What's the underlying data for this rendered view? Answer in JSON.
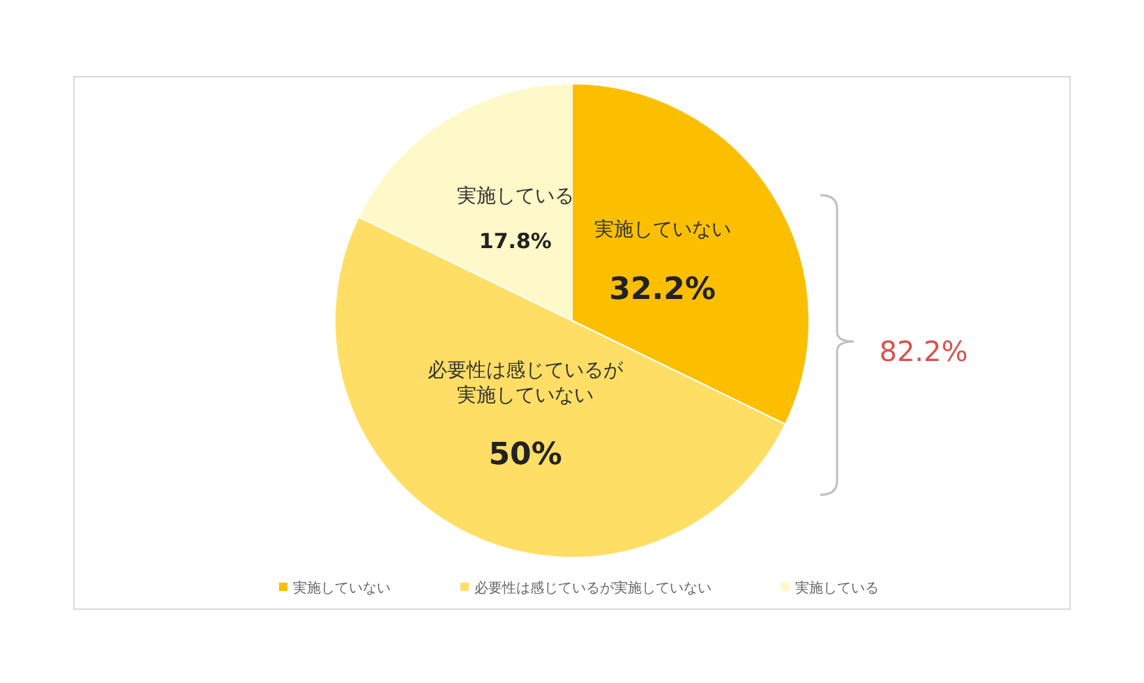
{
  "chart_data": {
    "type": "pie",
    "categories": [
      "実施していない",
      "必要性は感じているが実施していない",
      "実施している"
    ],
    "values": [
      32.2,
      50,
      17.8
    ],
    "colors": [
      "#fcbf00",
      "#ffde66",
      "#fff8c8"
    ],
    "value_labels": [
      "32.2%",
      "50%",
      "17.8%"
    ],
    "annotations": [
      "82.2%"
    ],
    "legend": "bottom"
  }
}
